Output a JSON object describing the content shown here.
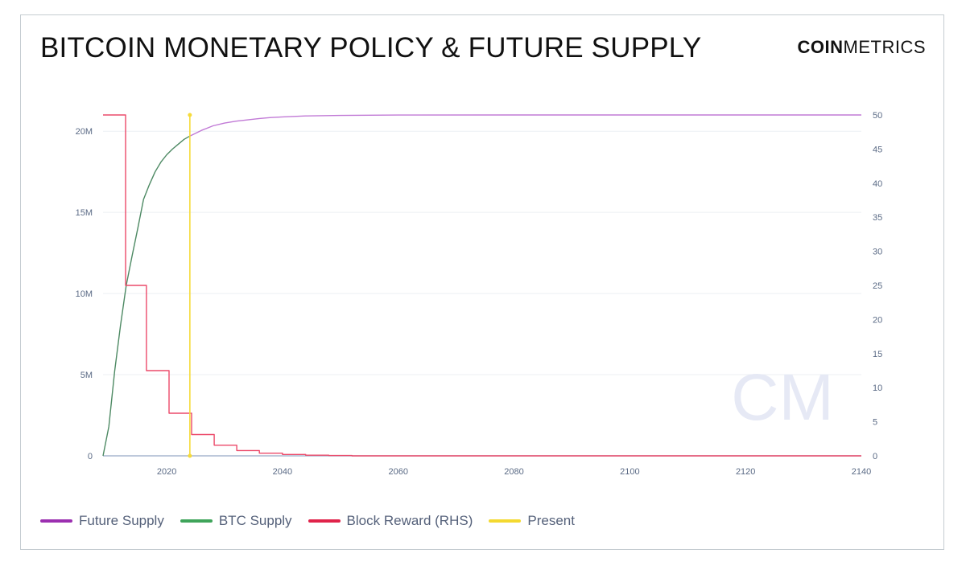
{
  "header": {
    "title": "BITCOIN MONETARY POLICY & FUTURE SUPPLY",
    "logo_bold": "COIN",
    "logo_light": "METRICS"
  },
  "watermark": "CM",
  "colors": {
    "future_supply": "#c17ad6",
    "btc_supply": "#4e8a64",
    "block_reward": "#ec4a6a",
    "present": "#f6db3a",
    "baseline": "#a9b7cf",
    "grid": "#eceff3",
    "legend_future": "#9b2fb0",
    "legend_btc": "#3fa45a",
    "legend_reward": "#e0234a",
    "legend_present": "#f4d930"
  },
  "legend": [
    {
      "label": "Future Supply",
      "color_key": "legend_future"
    },
    {
      "label": "BTC Supply",
      "color_key": "legend_btc"
    },
    {
      "label": "Block Reward (RHS)",
      "color_key": "legend_reward"
    },
    {
      "label": "Present",
      "color_key": "legend_present"
    }
  ],
  "chart_data": {
    "type": "line",
    "title": "BITCOIN MONETARY POLICY & FUTURE SUPPLY",
    "x_range": [
      2009,
      2140
    ],
    "x_ticks": [
      2020,
      2040,
      2060,
      2080,
      2100,
      2120,
      2140
    ],
    "y_left_range": [
      0,
      21000000
    ],
    "y_left_ticks": [
      0,
      5000000,
      10000000,
      15000000,
      20000000
    ],
    "y_left_tick_labels": [
      "0",
      "5M",
      "10M",
      "15M",
      "20M"
    ],
    "y_right_range": [
      0,
      50
    ],
    "y_right_ticks": [
      0,
      5,
      10,
      15,
      20,
      25,
      30,
      35,
      40,
      45,
      50
    ],
    "y_right_tick_labels": [
      "0",
      "5",
      "10",
      "15",
      "20",
      "25",
      "30",
      "35",
      "40",
      "45",
      "50"
    ],
    "grid": true,
    "legend_position": "bottom-left",
    "series": [
      {
        "name": "BTC Supply",
        "axis": "left",
        "points": [
          [
            2009,
            0
          ],
          [
            2010,
            1800000
          ],
          [
            2011,
            5200000
          ],
          [
            2012,
            8000000
          ],
          [
            2013,
            10500000
          ],
          [
            2014,
            12300000
          ],
          [
            2015,
            14000000
          ],
          [
            2016,
            15800000
          ],
          [
            2017,
            16700000
          ],
          [
            2018,
            17500000
          ],
          [
            2019,
            18100000
          ],
          [
            2020,
            18550000
          ],
          [
            2021,
            18900000
          ],
          [
            2022,
            19200000
          ],
          [
            2023,
            19500000
          ],
          [
            2024,
            19700000
          ]
        ]
      },
      {
        "name": "Future Supply",
        "axis": "left",
        "points": [
          [
            2024,
            19700000
          ],
          [
            2026,
            20050000
          ],
          [
            2028,
            20330000
          ],
          [
            2030,
            20500000
          ],
          [
            2032,
            20620000
          ],
          [
            2034,
            20700000
          ],
          [
            2036,
            20780000
          ],
          [
            2038,
            20840000
          ],
          [
            2040,
            20880000
          ],
          [
            2044,
            20940000
          ],
          [
            2050,
            20970000
          ],
          [
            2060,
            20995000
          ],
          [
            2080,
            21000000
          ],
          [
            2140,
            21000000
          ]
        ]
      },
      {
        "name": "Block Reward (RHS)",
        "axis": "right",
        "step": true,
        "points": [
          [
            2009,
            50
          ],
          [
            2012.9,
            50
          ],
          [
            2012.9,
            25
          ],
          [
            2016.5,
            25
          ],
          [
            2016.5,
            12.5
          ],
          [
            2020.4,
            12.5
          ],
          [
            2020.4,
            6.25
          ],
          [
            2024.3,
            6.25
          ],
          [
            2024.3,
            3.125
          ],
          [
            2028.2,
            3.125
          ],
          [
            2028.2,
            1.5625
          ],
          [
            2032.1,
            1.5625
          ],
          [
            2032.1,
            0.78125
          ],
          [
            2036,
            0.78125
          ],
          [
            2036,
            0.390625
          ],
          [
            2040,
            0.390625
          ],
          [
            2040,
            0.1953
          ],
          [
            2044,
            0.1953
          ],
          [
            2044,
            0.0977
          ],
          [
            2048,
            0.0977
          ],
          [
            2048,
            0.0488
          ],
          [
            2052,
            0.0488
          ],
          [
            2052,
            0
          ],
          [
            2140,
            0
          ]
        ]
      },
      {
        "name": "Present",
        "type": "vline",
        "x": 2024
      }
    ]
  }
}
